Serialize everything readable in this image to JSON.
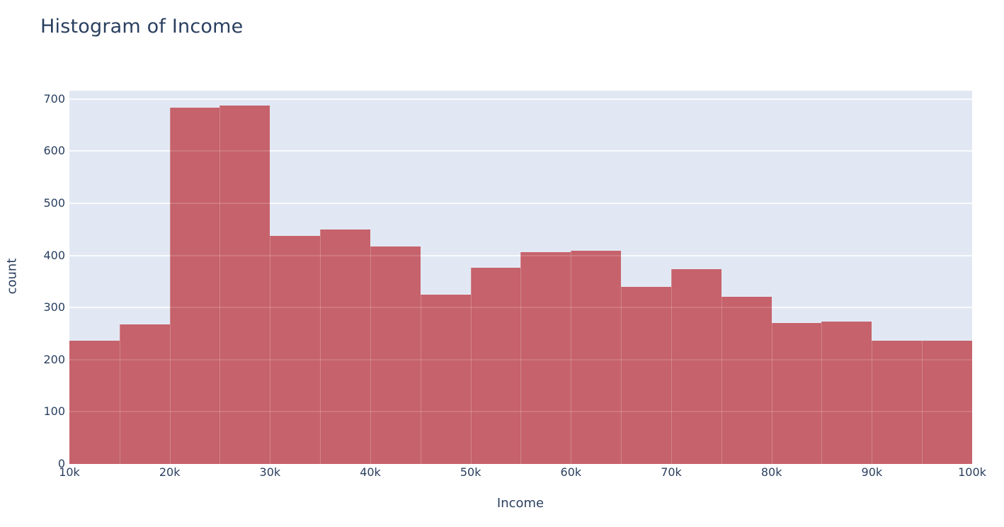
{
  "chart": {
    "title": "Histogram of Income",
    "x_axis": {
      "title": "Income"
    },
    "y_axis": {
      "title": "count"
    },
    "colors": {
      "bar": "#c6626b",
      "plot_background": "#e2e8f3",
      "page_background": "#ffffff",
      "text": "#2a3f5f",
      "gridline": "#ffffff"
    }
  },
  "chart_data": {
    "type": "bar",
    "subtype": "histogram",
    "title": "Histogram of Income",
    "xlabel": "Income",
    "ylabel": "count",
    "bin_width_label": "5k",
    "categories": [
      "10k-15k",
      "15k-20k",
      "20k-25k",
      "25k-30k",
      "30k-35k",
      "35k-40k",
      "40k-45k",
      "45k-50k",
      "50k-55k",
      "55k-60k",
      "60k-65k",
      "65k-70k",
      "70k-75k",
      "75k-80k",
      "80k-85k",
      "85k-90k",
      "90k-95k",
      "95k-100k"
    ],
    "values": [
      237,
      268,
      684,
      687,
      437,
      450,
      417,
      325,
      376,
      406,
      409,
      340,
      373,
      321,
      270,
      273,
      236,
      237
    ],
    "x_tick_labels": [
      "10k",
      "20k",
      "30k",
      "40k",
      "50k",
      "60k",
      "70k",
      "80k",
      "90k",
      "100k"
    ],
    "y_tick_values": [
      0,
      100,
      200,
      300,
      400,
      500,
      600,
      700
    ],
    "xlim_labels": [
      "10k",
      "100k"
    ],
    "ylim": [
      0,
      716
    ],
    "grid": "horizontal",
    "legend_position": "none"
  }
}
